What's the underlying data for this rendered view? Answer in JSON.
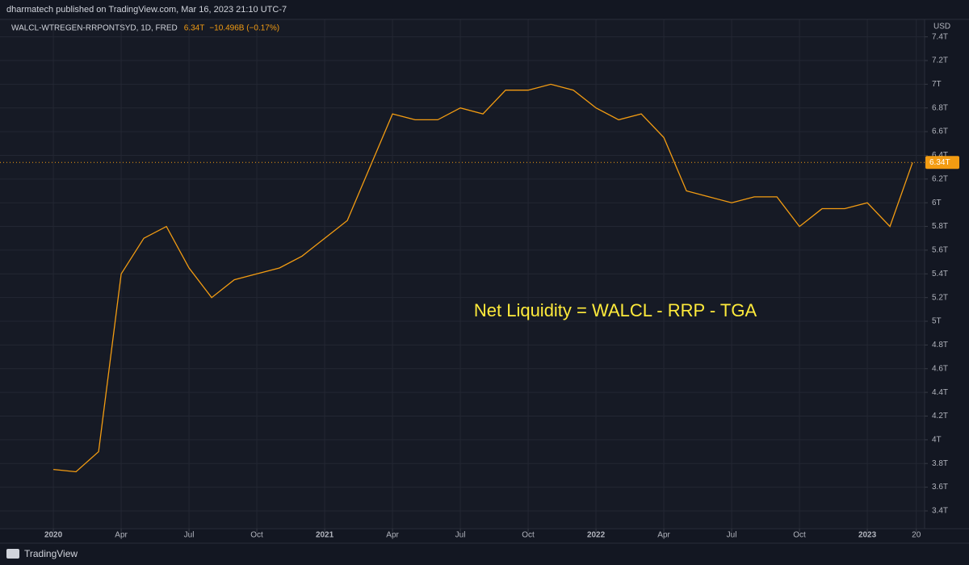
{
  "header": {
    "published": "dharmatech published on TradingView.com, Mar 16, 2023 21:10 UTC-7"
  },
  "footer": {
    "brand": "TradingView"
  },
  "chart_data": {
    "type": "line",
    "symbol": "WALCL-WTREGEN-RRPONTSYD, 1D, FRED",
    "last_price": {
      "value": 6.34,
      "label": "6.34T"
    },
    "change": "−10.496B (−0.17%)",
    "currency": "USD",
    "annotation": "Net Liquidity = WALCL - RRP - TGA",
    "color": "#f39c12",
    "annotation_color": "#ffeb3b",
    "grid": true,
    "x": [
      "2020-01",
      "2020-02",
      "2020-03",
      "2020-04",
      "2020-05",
      "2020-06",
      "2020-07",
      "2020-08",
      "2020-09",
      "2020-10",
      "2020-11",
      "2020-12",
      "2021-01",
      "2021-02",
      "2021-03",
      "2021-04",
      "2021-05",
      "2021-06",
      "2021-07",
      "2021-08",
      "2021-09",
      "2021-10",
      "2021-11",
      "2021-12",
      "2022-01",
      "2022-02",
      "2022-03",
      "2022-04",
      "2022-05",
      "2022-06",
      "2022-07",
      "2022-08",
      "2022-09",
      "2022-10",
      "2022-11",
      "2022-12",
      "2023-01",
      "2023-02",
      "2023-03"
    ],
    "values": [
      3.75,
      3.73,
      3.9,
      5.4,
      5.7,
      5.8,
      5.45,
      5.2,
      5.35,
      5.4,
      5.45,
      5.55,
      5.7,
      5.85,
      6.3,
      6.75,
      6.7,
      6.7,
      6.8,
      6.75,
      6.95,
      6.95,
      7.0,
      6.95,
      6.8,
      6.7,
      6.75,
      6.55,
      6.1,
      6.05,
      6.0,
      6.05,
      6.05,
      5.8,
      5.95,
      5.95,
      6.0,
      5.8,
      6.34
    ],
    "ylim": [
      3.25,
      7.52
    ],
    "yticks": [
      {
        "value": 3.4,
        "label": "3.4T"
      },
      {
        "value": 3.6,
        "label": "3.6T"
      },
      {
        "value": 3.8,
        "label": "3.8T"
      },
      {
        "value": 4,
        "label": "4T"
      },
      {
        "value": 4.2,
        "label": "4.2T"
      },
      {
        "value": 4.4,
        "label": "4.4T"
      },
      {
        "value": 4.6,
        "label": "4.6T"
      },
      {
        "value": 4.8,
        "label": "4.8T"
      },
      {
        "value": 5,
        "label": "5T"
      },
      {
        "value": 5.2,
        "label": "5.2T"
      },
      {
        "value": 5.4,
        "label": "5.4T"
      },
      {
        "value": 5.6,
        "label": "5.6T"
      },
      {
        "value": 5.8,
        "label": "5.8T"
      },
      {
        "value": 6,
        "label": "6T"
      },
      {
        "value": 6.2,
        "label": "6.2T"
      },
      {
        "value": 6.4,
        "label": "6.4T"
      },
      {
        "value": 6.6,
        "label": "6.6T"
      },
      {
        "value": 6.8,
        "label": "6.8T"
      },
      {
        "value": 7,
        "label": "7T"
      },
      {
        "value": 7.2,
        "label": "7.2T"
      },
      {
        "value": 7.4,
        "label": "7.4T"
      }
    ],
    "xticks": [
      {
        "value": "2020-01",
        "label": "2020"
      },
      {
        "value": "2020-04",
        "label": "Apr"
      },
      {
        "value": "2020-07",
        "label": "Jul"
      },
      {
        "value": "2020-10",
        "label": "Oct"
      },
      {
        "value": "2021-01",
        "label": "2021"
      },
      {
        "value": "2021-04",
        "label": "Apr"
      },
      {
        "value": "2021-07",
        "label": "Jul"
      },
      {
        "value": "2021-10",
        "label": "Oct"
      },
      {
        "value": "2022-01",
        "label": "2022"
      },
      {
        "value": "2022-04",
        "label": "Apr"
      },
      {
        "value": "2022-07",
        "label": "Jul"
      },
      {
        "value": "2022-10",
        "label": "Oct"
      },
      {
        "value": "2023-01",
        "label": "2023"
      },
      {
        "value": "2023-03-20",
        "label": "20"
      }
    ]
  }
}
